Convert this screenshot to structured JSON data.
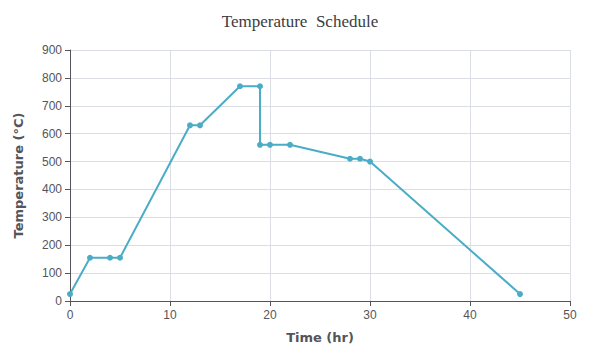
{
  "chart_data": {
    "type": "line",
    "title": "Temperature  Schedule",
    "xlabel": "Time (hr)",
    "ylabel": "Temperature (°C)",
    "x": [
      0,
      2,
      4,
      5,
      12,
      13,
      17,
      19,
      19,
      20,
      22,
      28,
      29,
      30,
      45
    ],
    "values": [
      25,
      155,
      155,
      155,
      630,
      630,
      770,
      770,
      560,
      560,
      560,
      510,
      510,
      500,
      25
    ],
    "color": "#4bacc6",
    "marker": "circle",
    "xlim": [
      0,
      50
    ],
    "xticks": [
      0,
      10,
      20,
      30,
      40,
      50
    ],
    "ylim": [
      0,
      900
    ],
    "yticks": [
      0,
      100,
      200,
      300,
      400,
      500,
      600,
      700,
      800,
      900
    ],
    "grid": true
  }
}
